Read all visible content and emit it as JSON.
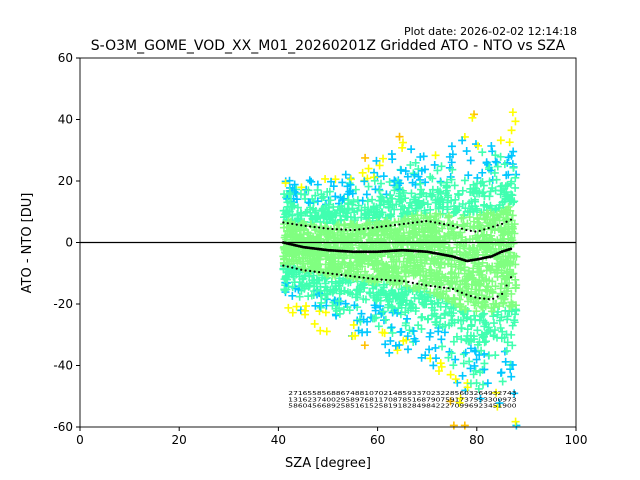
{
  "chart_data": {
    "type": "scatter",
    "title": "S-O3M_GOME_VOD_XX_M01_20260201Z Gridded ATO - NTO vs SZA",
    "plot_date": "Plot date: 2026-02-02 12:14:18",
    "xlabel": "SZA [degree]",
    "ylabel": "ATO - NTO [DU]",
    "xlim": [
      0,
      100
    ],
    "ylim": [
      -60,
      60
    ],
    "xticks": [
      0,
      20,
      40,
      60,
      80,
      100
    ],
    "yticks": [
      -60,
      -40,
      -20,
      0,
      20,
      40,
      60
    ],
    "zero_line": 0,
    "scatter_extent": {
      "sza_range": [
        41,
        88
      ],
      "upper_envelope_deg": [
        41,
        50,
        60,
        70,
        80,
        88
      ],
      "upper_envelope_du": [
        20,
        22,
        25,
        33,
        36,
        38
      ],
      "lower_envelope_deg": [
        41,
        50,
        60,
        70,
        80,
        88
      ],
      "lower_envelope_du": [
        -20,
        -26,
        -32,
        -40,
        -55,
        -58
      ],
      "marker": "+",
      "colors_dense_to_sparse": [
        "#80ff80",
        "#40ffb0",
        "#00c8ff",
        "#ffff00",
        "#ffc000",
        "#0050ff",
        "#0000c0"
      ]
    },
    "mean_series": {
      "name": "mean",
      "x": [
        41,
        45,
        50,
        55,
        60,
        65,
        70,
        75,
        78,
        80,
        83,
        85,
        87
      ],
      "y": [
        0,
        -1.5,
        -2.5,
        -3,
        -3,
        -2.5,
        -3,
        -4.5,
        -6,
        -5.5,
        -4.5,
        -3,
        -2
      ]
    },
    "upper_stddev": {
      "name": "mean + stddev",
      "x": [
        41,
        45,
        50,
        55,
        60,
        65,
        70,
        75,
        78,
        80,
        83,
        85,
        87
      ],
      "y": [
        6.5,
        5.5,
        4.5,
        4,
        5,
        6,
        7,
        5.5,
        4,
        3.5,
        5,
        6,
        7.5
      ]
    },
    "lower_stddev": {
      "name": "mean - stddev",
      "x": [
        41,
        45,
        50,
        55,
        60,
        65,
        70,
        75,
        78,
        80,
        83,
        85,
        87
      ],
      "y": [
        -7.5,
        -9,
        -10,
        -11,
        -12,
        -12.5,
        -14,
        -15,
        -17,
        -18,
        -18.5,
        -17,
        -11
      ]
    },
    "count_rows_note": "Three rows of tiny per-bin sample counts printed along the bottom between SZA ~41 and ~88, at y ≈ -49, -51, -53"
  }
}
